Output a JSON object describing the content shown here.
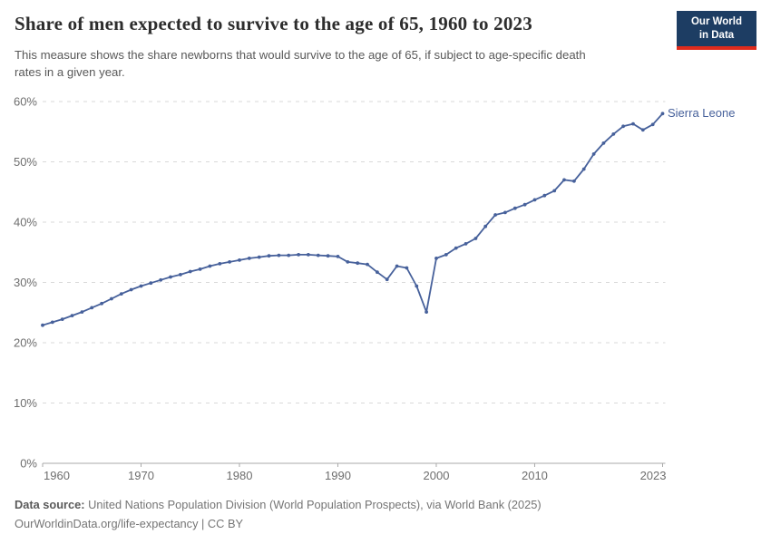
{
  "header": {
    "title": "Share of men expected to survive to the age of 65, 1960 to 2023",
    "subtitle_lines": [
      "This measure shows the share newborns that would survive to the age of 65, if subject to age-specific death",
      "rates in a given year."
    ],
    "logo": {
      "line1": "Our World",
      "line2": "in Data"
    }
  },
  "chart_data": {
    "type": "line",
    "title": "Share of men expected to survive to the age of 65, 1960 to 2023",
    "xlabel": "",
    "ylabel": "",
    "ylim": [
      0,
      60
    ],
    "yticks": [
      0,
      10,
      20,
      30,
      40,
      50,
      60
    ],
    "ytick_labels": [
      "0%",
      "10%",
      "20%",
      "30%",
      "40%",
      "50%",
      "60%"
    ],
    "xticks": [
      1960,
      1970,
      1980,
      1990,
      2000,
      2010,
      2023
    ],
    "xtick_labels": [
      "1960",
      "1970",
      "1980",
      "1990",
      "2000",
      "2010",
      "2023"
    ],
    "grid": "horizontal-dashed",
    "legend_position": "end-of-line",
    "series": [
      {
        "name": "Sierra Leone",
        "color": "#47619b",
        "x": [
          1960,
          1961,
          1962,
          1963,
          1964,
          1965,
          1966,
          1967,
          1968,
          1969,
          1970,
          1971,
          1972,
          1973,
          1974,
          1975,
          1976,
          1977,
          1978,
          1979,
          1980,
          1981,
          1982,
          1983,
          1984,
          1985,
          1986,
          1987,
          1988,
          1989,
          1990,
          1991,
          1992,
          1993,
          1994,
          1995,
          1996,
          1997,
          1998,
          1999,
          2000,
          2001,
          2002,
          2003,
          2004,
          2005,
          2006,
          2007,
          2008,
          2009,
          2010,
          2011,
          2012,
          2013,
          2014,
          2015,
          2016,
          2017,
          2018,
          2019,
          2020,
          2021,
          2022,
          2023
        ],
        "values": [
          22.9,
          23.4,
          23.9,
          24.5,
          25.1,
          25.8,
          26.5,
          27.3,
          28.1,
          28.8,
          29.4,
          29.9,
          30.4,
          30.9,
          31.3,
          31.8,
          32.2,
          32.7,
          33.1,
          33.4,
          33.7,
          34.0,
          34.2,
          34.4,
          34.5,
          34.5,
          34.6,
          34.6,
          34.5,
          34.4,
          34.3,
          33.4,
          33.2,
          33.0,
          31.7,
          30.5,
          32.7,
          32.4,
          29.4,
          25.1,
          34.0,
          34.6,
          35.7,
          36.4,
          37.3,
          39.3,
          41.2,
          41.6,
          42.3,
          42.9,
          43.7,
          44.4,
          45.2,
          47.0,
          46.8,
          48.8,
          51.3,
          53.1,
          54.6,
          55.9,
          56.3,
          55.3,
          56.2,
          58.0
        ]
      }
    ]
  },
  "footer": {
    "source_label": "Data source:",
    "source_text": " United Nations Population Division (World Population Prospects), via World Bank (2025)",
    "note": "OurWorldinData.org/life-expectancy | CC BY"
  },
  "colors": {
    "line": "#47619b",
    "grid": "#d9d9d9",
    "axis": "#a9a9a9",
    "tick_text": "#6e6e6e",
    "logo_bg": "#1d3d63",
    "logo_red": "#df2b1c"
  }
}
